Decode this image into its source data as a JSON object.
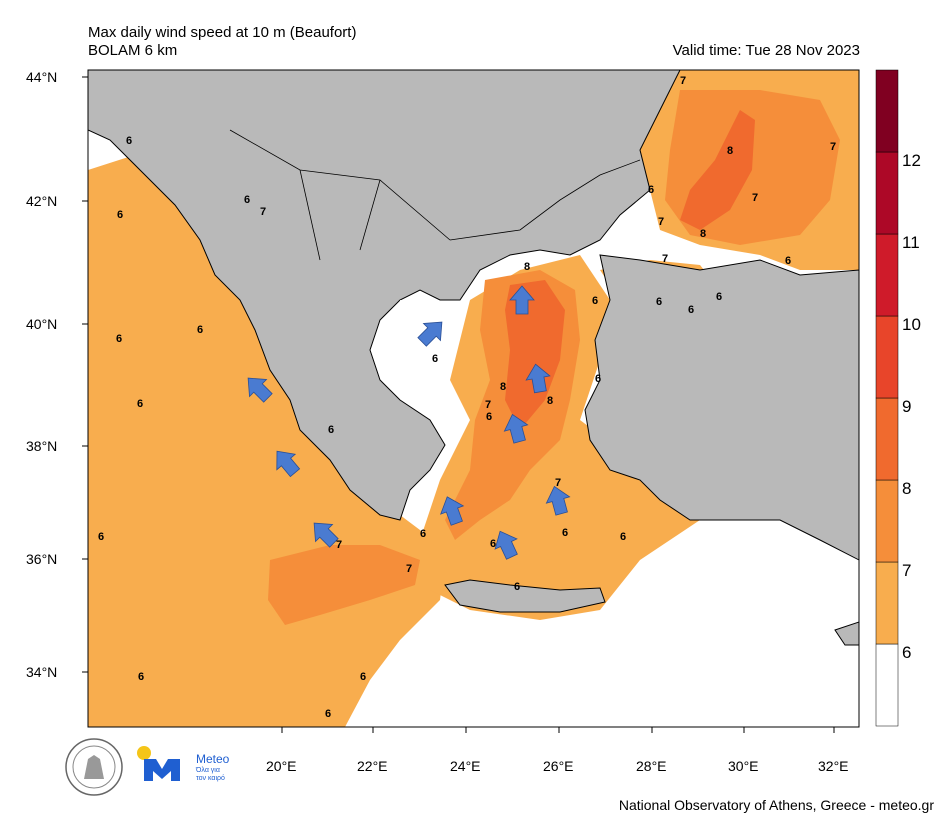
{
  "header": {
    "title": "Max daily wind speed at 10 m (Beaufort)",
    "model": "BOLAM 6 km",
    "valid_time": "Valid time: Tue 28 Nov 2023"
  },
  "axes": {
    "lat_labels": [
      "44°N",
      "42°N",
      "40°N",
      "38°N",
      "36°N",
      "34°N"
    ],
    "lon_labels": [
      "20°E",
      "22°E",
      "24°E",
      "26°E",
      "28°E",
      "30°E",
      "32°E"
    ]
  },
  "colorbar": {
    "labels": [
      "6",
      "7",
      "8",
      "9",
      "10",
      "11",
      "12"
    ],
    "colors": [
      "#ffffff",
      "#f8ad4e",
      "#f58e3a",
      "#f06a2e",
      "#e8452a",
      "#cf1b2a",
      "#ad0827",
      "#800021"
    ]
  },
  "map": {
    "colors": {
      "land": "#b9b9b9",
      "sea_low": "#ffffff",
      "bf6": "#f8ad4e",
      "bf7": "#f58e3a",
      "bf8": "#f06a2e",
      "arrow": "#4a7bd1"
    },
    "contour_labels": [
      {
        "t": "6"
      },
      {
        "t": "6"
      },
      {
        "t": "6"
      },
      {
        "t": "6"
      },
      {
        "t": "6"
      },
      {
        "t": "6"
      },
      {
        "t": "6"
      },
      {
        "t": "6"
      },
      {
        "t": "6"
      },
      {
        "t": "6"
      },
      {
        "t": "6"
      },
      {
        "t": "6"
      },
      {
        "t": "6"
      },
      {
        "t": "6"
      },
      {
        "t": "6"
      },
      {
        "t": "6"
      },
      {
        "t": "6"
      },
      {
        "t": "6"
      },
      {
        "t": "6"
      },
      {
        "t": "6"
      },
      {
        "t": "6"
      },
      {
        "t": "6"
      },
      {
        "t": "6"
      },
      {
        "t": "6"
      },
      {
        "t": "7"
      },
      {
        "t": "7"
      },
      {
        "t": "7"
      },
      {
        "t": "7"
      },
      {
        "t": "7"
      },
      {
        "t": "7"
      },
      {
        "t": "7"
      },
      {
        "t": "7"
      },
      {
        "t": "7"
      },
      {
        "t": "7"
      },
      {
        "t": "8"
      },
      {
        "t": "8"
      },
      {
        "t": "8"
      },
      {
        "t": "8"
      },
      {
        "t": "8"
      },
      {
        "t": "6"
      }
    ]
  },
  "logos": {
    "meteo_title": "Meteo",
    "meteo_tagline1": "Όλα για",
    "meteo_tagline2": "τον καιρό"
  },
  "footer": {
    "credit": "National Observatory of Athens, Greece - meteo.gr"
  }
}
